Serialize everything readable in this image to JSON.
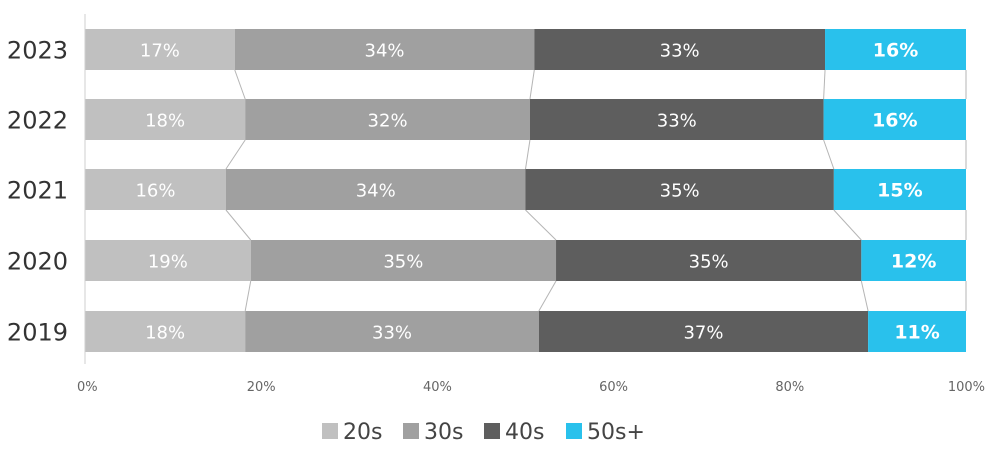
{
  "chart_data": {
    "type": "bar",
    "orientation": "horizontal",
    "stacked": true,
    "normalized": true,
    "categories": [
      "2023",
      "2022",
      "2021",
      "2020",
      "2019"
    ],
    "series": [
      {
        "name": "20s",
        "values": [
          17,
          18,
          16,
          19,
          18
        ],
        "labels": [
          "17%",
          "18%",
          "16%",
          "19%",
          "18%"
        ],
        "color": "#c0c0c0"
      },
      {
        "name": "30s",
        "values": [
          34,
          32,
          34,
          35,
          33
        ],
        "labels": [
          "34%",
          "32%",
          "34%",
          "35%",
          "33%"
        ],
        "color": "#a0a0a0"
      },
      {
        "name": "40s",
        "values": [
          33,
          33,
          35,
          35,
          37
        ],
        "labels": [
          "33%",
          "33%",
          "35%",
          "35%",
          "37%"
        ],
        "color": "#5e5e5e"
      },
      {
        "name": "50s+",
        "values": [
          16,
          16,
          15,
          12,
          11
        ],
        "labels": [
          "16%",
          "16%",
          "15%",
          "12%",
          "11%"
        ],
        "color": "#29c1ec"
      }
    ],
    "xlim": [
      0,
      100
    ],
    "x_ticks": [
      "0%",
      "20%",
      "40%",
      "60%",
      "80%",
      "100%"
    ],
    "legend": "bottom",
    "grid": false,
    "connector_lines": true
  }
}
